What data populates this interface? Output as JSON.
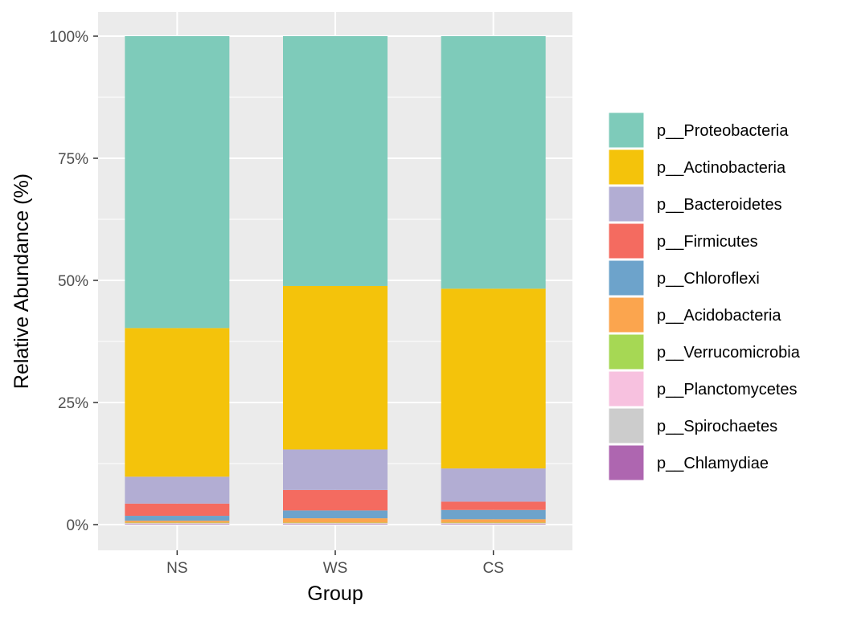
{
  "chart_data": {
    "type": "bar",
    "stacked": true,
    "percent": true,
    "xlabel": "Group",
    "ylabel": "Relative Abundance (%)",
    "ylim": [
      0,
      100
    ],
    "yticks": [
      0,
      25,
      50,
      75,
      100
    ],
    "ytick_labels": [
      "0%",
      "25%",
      "50%",
      "75%",
      "100%"
    ],
    "grid": true,
    "legend_position": "right",
    "categories": [
      "NS",
      "WS",
      "CS"
    ],
    "series": [
      {
        "name": "p__Chlamydiae",
        "color": "#AE66B0",
        "values": [
          0.1,
          0.1,
          0.1
        ]
      },
      {
        "name": "p__Spirochaetes",
        "color": "#CCCCCC",
        "values": [
          0.1,
          0.1,
          0.1
        ]
      },
      {
        "name": "p__Planctomycetes",
        "color": "#F7C1DF",
        "values": [
          0.1,
          0.1,
          0.1
        ]
      },
      {
        "name": "p__Verrucomicrobia",
        "color": "#A6D854",
        "values": [
          0.1,
          0.1,
          0.1
        ]
      },
      {
        "name": "p__Acidobacteria",
        "color": "#FBA54E",
        "values": [
          0.4,
          0.9,
          0.7
        ]
      },
      {
        "name": "p__Chloroflexi",
        "color": "#6DA3CB",
        "values": [
          1.0,
          1.6,
          1.9
        ]
      },
      {
        "name": "p__Firmicutes",
        "color": "#F46B60",
        "values": [
          2.5,
          4.2,
          1.7
        ]
      },
      {
        "name": "p__Bacteroidetes",
        "color": "#B2ADD3",
        "values": [
          5.5,
          8.3,
          6.8
        ]
      },
      {
        "name": "p__Actinobacteria",
        "color": "#F4C30B",
        "values": [
          30.4,
          33.5,
          36.8
        ]
      },
      {
        "name": "p__Proteobacteria",
        "color": "#7ECBBA",
        "values": [
          59.7,
          51.2,
          51.7
        ]
      }
    ],
    "legend_order": [
      "p__Proteobacteria",
      "p__Actinobacteria",
      "p__Bacteroidetes",
      "p__Firmicutes",
      "p__Chloroflexi",
      "p__Acidobacteria",
      "p__Verrucomicrobia",
      "p__Planctomycetes",
      "p__Spirochaetes",
      "p__Chlamydiae"
    ]
  }
}
